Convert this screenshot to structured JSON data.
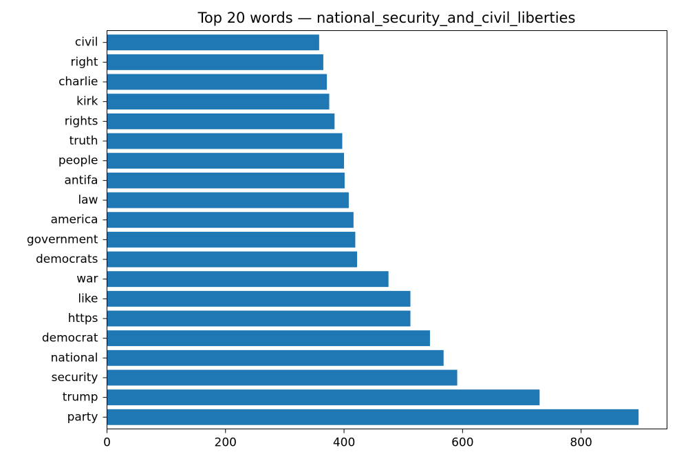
{
  "chart_data": {
    "type": "bar",
    "orientation": "horizontal",
    "title": "Top 20 words — national_security_and_civil_liberties",
    "xlabel": "",
    "ylabel": "",
    "xlim": [
      0,
      945
    ],
    "xticks": [
      0,
      200,
      400,
      600,
      800
    ],
    "grid": false,
    "bar_color": "#1f77b4",
    "categories": [
      "party",
      "trump",
      "security",
      "national",
      "democrat",
      "https",
      "like",
      "war",
      "democrats",
      "government",
      "america",
      "law",
      "antifa",
      "people",
      "truth",
      "rights",
      "kirk",
      "charlie",
      "right",
      "civil"
    ],
    "values": [
      897,
      730,
      591,
      568,
      545,
      512,
      512,
      475,
      422,
      419,
      416,
      408,
      401,
      400,
      397,
      384,
      375,
      371,
      365,
      358
    ]
  }
}
